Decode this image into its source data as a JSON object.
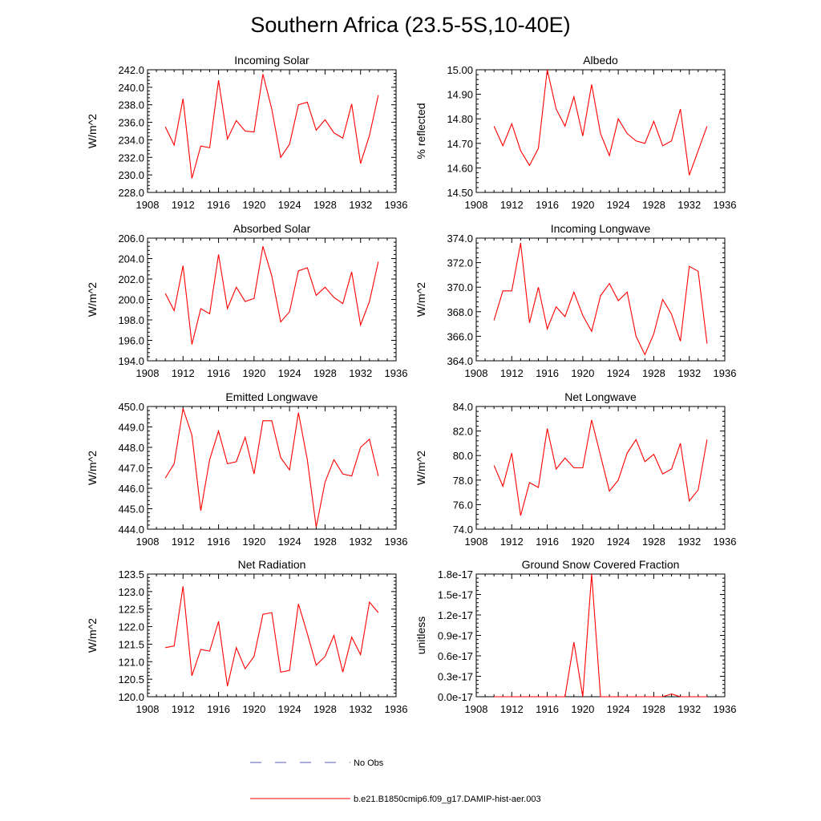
{
  "figure": {
    "title": "Southern Africa (23.5-5S,10-40E)"
  },
  "colors": {
    "series": "#ff0000",
    "no_obs": "#5a5ab4",
    "axes": "#000000"
  },
  "legend": {
    "placement": "bottom-center",
    "items": [
      {
        "label": "No Obs",
        "style": "dashed",
        "color": "#5a5ab4"
      },
      {
        "label": "b.e21.B1850cmip6.f09_g17.DAMIP-hist-aer.003",
        "style": "solid",
        "color": "#ff0000"
      }
    ]
  },
  "chart_data": [
    {
      "type": "line",
      "title": "Incoming Solar",
      "ylabel": "W/m^2",
      "xlim": [
        1908,
        1936
      ],
      "ylim": [
        228,
        242
      ],
      "xticks": [
        1908,
        1912,
        1916,
        1920,
        1924,
        1928,
        1932,
        1936
      ],
      "yticks": [
        "228.0",
        "230.0",
        "232.0",
        "234.0",
        "236.0",
        "238.0",
        "240.0",
        "242.0"
      ],
      "x": [
        1910,
        1911,
        1912,
        1913,
        1914,
        1915,
        1916,
        1917,
        1918,
        1919,
        1920,
        1921,
        1922,
        1923,
        1924,
        1925,
        1926,
        1927,
        1928,
        1929,
        1930,
        1931,
        1932,
        1933,
        1934
      ],
      "series": [
        {
          "values": [
            235.5,
            233.4,
            238.7,
            229.6,
            233.3,
            233.1,
            240.8,
            234.1,
            236.2,
            235.0,
            234.9,
            241.5,
            237.5,
            232.0,
            233.5,
            238.0,
            238.3,
            235.1,
            236.3,
            234.8,
            234.2,
            238.1,
            231.3,
            234.5,
            239.1
          ]
        }
      ],
      "grid": false
    },
    {
      "type": "line",
      "title": "Albedo",
      "ylabel": "% reflected",
      "xlim": [
        1908,
        1936
      ],
      "ylim": [
        14.5,
        15.0
      ],
      "xticks": [
        1908,
        1912,
        1916,
        1920,
        1924,
        1928,
        1932,
        1936
      ],
      "yticks": [
        "14.50",
        "14.60",
        "14.70",
        "14.80",
        "14.90",
        "15.00"
      ],
      "x": [
        1910,
        1911,
        1912,
        1913,
        1914,
        1915,
        1916,
        1917,
        1918,
        1919,
        1920,
        1921,
        1922,
        1923,
        1924,
        1925,
        1926,
        1927,
        1928,
        1929,
        1930,
        1931,
        1932,
        1933,
        1934
      ],
      "series": [
        {
          "values": [
            14.77,
            14.69,
            14.78,
            14.67,
            14.61,
            14.68,
            15.0,
            14.84,
            14.77,
            14.89,
            14.73,
            14.94,
            14.74,
            14.65,
            14.8,
            14.74,
            14.71,
            14.7,
            14.79,
            14.69,
            14.71,
            14.84,
            14.57,
            14.67,
            14.77
          ]
        }
      ],
      "grid": false
    },
    {
      "type": "line",
      "title": "Absorbed Solar",
      "ylabel": "W/m^2",
      "xlim": [
        1908,
        1936
      ],
      "ylim": [
        194,
        206
      ],
      "xticks": [
        1908,
        1912,
        1916,
        1920,
        1924,
        1928,
        1932,
        1936
      ],
      "yticks": [
        "194.0",
        "196.0",
        "198.0",
        "200.0",
        "202.0",
        "204.0",
        "206.0"
      ],
      "x": [
        1910,
        1911,
        1912,
        1913,
        1914,
        1915,
        1916,
        1917,
        1918,
        1919,
        1920,
        1921,
        1922,
        1923,
        1924,
        1925,
        1926,
        1927,
        1928,
        1929,
        1930,
        1931,
        1932,
        1933,
        1934
      ],
      "series": [
        {
          "values": [
            200.6,
            198.9,
            203.3,
            195.6,
            199.1,
            198.6,
            204.4,
            199.1,
            201.2,
            199.8,
            200.1,
            205.2,
            202.3,
            197.8,
            198.8,
            202.8,
            203.1,
            200.4,
            201.2,
            200.2,
            199.6,
            202.7,
            197.5,
            199.8,
            203.7
          ]
        }
      ],
      "grid": false
    },
    {
      "type": "line",
      "title": "Incoming Longwave",
      "ylabel": "W/m^2",
      "xlim": [
        1908,
        1936
      ],
      "ylim": [
        364,
        374
      ],
      "xticks": [
        1908,
        1912,
        1916,
        1920,
        1924,
        1928,
        1932,
        1936
      ],
      "yticks": [
        "364.0",
        "366.0",
        "368.0",
        "370.0",
        "372.0",
        "374.0"
      ],
      "x": [
        1910,
        1911,
        1912,
        1913,
        1914,
        1915,
        1916,
        1917,
        1918,
        1919,
        1920,
        1921,
        1922,
        1923,
        1924,
        1925,
        1926,
        1927,
        1928,
        1929,
        1930,
        1931,
        1932,
        1933,
        1934
      ],
      "series": [
        {
          "values": [
            367.3,
            369.7,
            369.7,
            373.6,
            367.1,
            370.0,
            366.6,
            368.4,
            367.6,
            369.6,
            367.7,
            366.4,
            369.3,
            370.3,
            368.9,
            369.6,
            366.0,
            364.5,
            366.2,
            369.0,
            367.8,
            365.6,
            371.7,
            371.3,
            365.4
          ]
        }
      ],
      "grid": false
    },
    {
      "type": "line",
      "title": "Emitted Longwave",
      "ylabel": "W/m^2",
      "xlim": [
        1908,
        1936
      ],
      "ylim": [
        444,
        450
      ],
      "xticks": [
        1908,
        1912,
        1916,
        1920,
        1924,
        1928,
        1932,
        1936
      ],
      "yticks": [
        "444.0",
        "445.0",
        "446.0",
        "447.0",
        "448.0",
        "449.0",
        "450.0"
      ],
      "x": [
        1910,
        1911,
        1912,
        1913,
        1914,
        1915,
        1916,
        1917,
        1918,
        1919,
        1920,
        1921,
        1922,
        1923,
        1924,
        1925,
        1926,
        1927,
        1928,
        1929,
        1930,
        1931,
        1932,
        1933,
        1934
      ],
      "series": [
        {
          "values": [
            446.5,
            447.2,
            449.9,
            448.6,
            444.9,
            447.4,
            448.8,
            447.2,
            447.3,
            448.5,
            446.7,
            449.3,
            449.3,
            447.5,
            446.9,
            449.7,
            447.4,
            444.1,
            446.3,
            447.4,
            446.7,
            446.6,
            448.0,
            448.4,
            446.6
          ]
        }
      ],
      "grid": false
    },
    {
      "type": "line",
      "title": "Net Longwave",
      "ylabel": "W/m^2",
      "xlim": [
        1908,
        1936
      ],
      "ylim": [
        74,
        84
      ],
      "xticks": [
        1908,
        1912,
        1916,
        1920,
        1924,
        1928,
        1932,
        1936
      ],
      "yticks": [
        "74.0",
        "76.0",
        "78.0",
        "80.0",
        "82.0",
        "84.0"
      ],
      "x": [
        1910,
        1911,
        1912,
        1913,
        1914,
        1915,
        1916,
        1917,
        1918,
        1919,
        1920,
        1921,
        1922,
        1923,
        1924,
        1925,
        1926,
        1927,
        1928,
        1929,
        1930,
        1931,
        1932,
        1933,
        1934
      ],
      "series": [
        {
          "values": [
            79.2,
            77.5,
            80.2,
            75.1,
            77.8,
            77.4,
            82.2,
            78.9,
            79.8,
            79.0,
            79.0,
            82.9,
            80.0,
            77.1,
            78.0,
            80.2,
            81.3,
            79.5,
            80.1,
            78.5,
            78.9,
            81.0,
            76.3,
            77.2,
            81.3
          ]
        }
      ],
      "grid": false
    },
    {
      "type": "line",
      "title": "Net Radiation",
      "ylabel": "W/m^2",
      "xlim": [
        1908,
        1936
      ],
      "ylim": [
        120,
        123.5
      ],
      "xticks": [
        1908,
        1912,
        1916,
        1920,
        1924,
        1928,
        1932,
        1936
      ],
      "yticks": [
        "120.0",
        "120.5",
        "121.0",
        "121.5",
        "122.0",
        "122.5",
        "123.0",
        "123.5"
      ],
      "x": [
        1910,
        1911,
        1912,
        1913,
        1914,
        1915,
        1916,
        1917,
        1918,
        1919,
        1920,
        1921,
        1922,
        1923,
        1924,
        1925,
        1926,
        1927,
        1928,
        1929,
        1930,
        1931,
        1932,
        1933,
        1934
      ],
      "series": [
        {
          "values": [
            121.4,
            121.45,
            123.15,
            120.6,
            121.35,
            121.3,
            122.15,
            120.3,
            121.4,
            120.8,
            121.15,
            122.35,
            122.4,
            120.7,
            120.75,
            122.65,
            121.8,
            120.9,
            121.15,
            121.75,
            120.7,
            121.7,
            121.2,
            122.7,
            122.4
          ]
        }
      ],
      "grid": false
    },
    {
      "type": "line",
      "title": "Ground Snow Covered Fraction",
      "ylabel": "unitless",
      "xlim": [
        1908,
        1936
      ],
      "ylim": [
        0,
        1.8e-17
      ],
      "xticks": [
        1908,
        1912,
        1916,
        1920,
        1924,
        1928,
        1932,
        1936
      ],
      "yticks": [
        "0.0e-17",
        "0.3e-17",
        "0.6e-17",
        "0.9e-17",
        "1.2e-17",
        "1.5e-17",
        "1.8e-17"
      ],
      "x": [
        1910,
        1911,
        1912,
        1913,
        1914,
        1915,
        1916,
        1917,
        1918,
        1919,
        1920,
        1921,
        1922,
        1923,
        1924,
        1925,
        1926,
        1927,
        1928,
        1929,
        1930,
        1931,
        1932,
        1933,
        1934
      ],
      "series": [
        {
          "values": [
            0,
            0,
            0,
            0,
            0,
            0,
            0,
            0,
            0,
            8e-18,
            0,
            1.8e-17,
            0,
            0,
            0,
            0,
            0,
            0,
            0,
            0,
            4e-19,
            0,
            0,
            0,
            0
          ]
        }
      ],
      "grid": false
    }
  ]
}
